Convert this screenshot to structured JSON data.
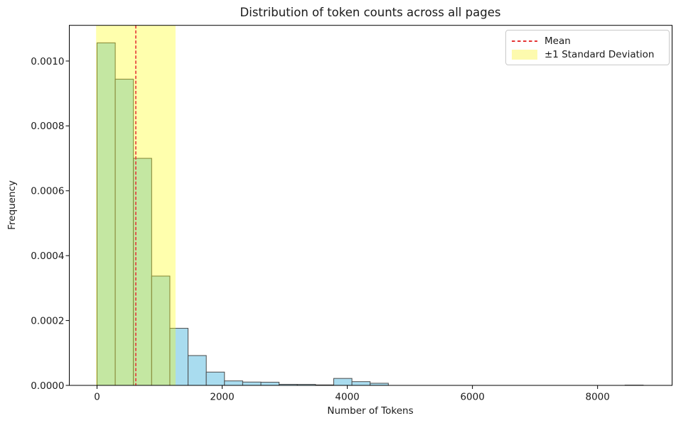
{
  "chart_data": {
    "type": "bar",
    "subtype": "histogram-density",
    "title": "Distribution of token counts across all pages",
    "xlabel": "Number of Tokens",
    "ylabel": "Frequency",
    "xlim": [
      -443,
      9191
    ],
    "ylim": [
      0,
      0.00111
    ],
    "grid": false,
    "x_tick_values": [
      0,
      2000,
      4000,
      6000,
      8000
    ],
    "x_tick_labels": [
      "0",
      "2000",
      "4000",
      "6000",
      "8000"
    ],
    "y_tick_values": [
      0,
      0.0002,
      0.0004,
      0.0006,
      0.0008,
      0.001
    ],
    "y_tick_labels": [
      "0.0000",
      "0.0002",
      "0.0004",
      "0.0006",
      "0.0008",
      "0.0010"
    ],
    "bin_start": 0,
    "bin_width": 291,
    "densities": [
      0.001056,
      0.000944,
      0.0007,
      0.000337,
      0.000176,
      9.2e-05,
      4.1e-05,
      1.38e-05,
      1.03e-05,
      9.8e-06,
      3.3e-06,
      3.1e-06,
      1.5e-06,
      2.15e-05,
      1.16e-05,
      6.6e-06,
      0,
      0,
      0,
      0,
      0,
      0,
      0,
      0,
      0,
      0,
      0,
      0,
      0,
      8e-07
    ],
    "mean": 620,
    "std": 635,
    "std_band": [
      -15,
      1255
    ],
    "legend": {
      "position": "upper right",
      "items": [
        {
          "label": "Mean",
          "swatch": "red-dashed-line"
        },
        {
          "label": "±1 Standard Deviation",
          "swatch": "yellow-patch"
        }
      ]
    },
    "colors": {
      "bar_fill": "#a9dcef",
      "bar_edge": "#4b4b4b",
      "band_fill": "rgba(255,255,0,0.32)",
      "band_over_bar_apparent": "#b5dfa5",
      "mean_line": "#e53535",
      "spine": "#000000",
      "text": "#1a1a1a",
      "legend_patch": "#fdfaae"
    }
  }
}
